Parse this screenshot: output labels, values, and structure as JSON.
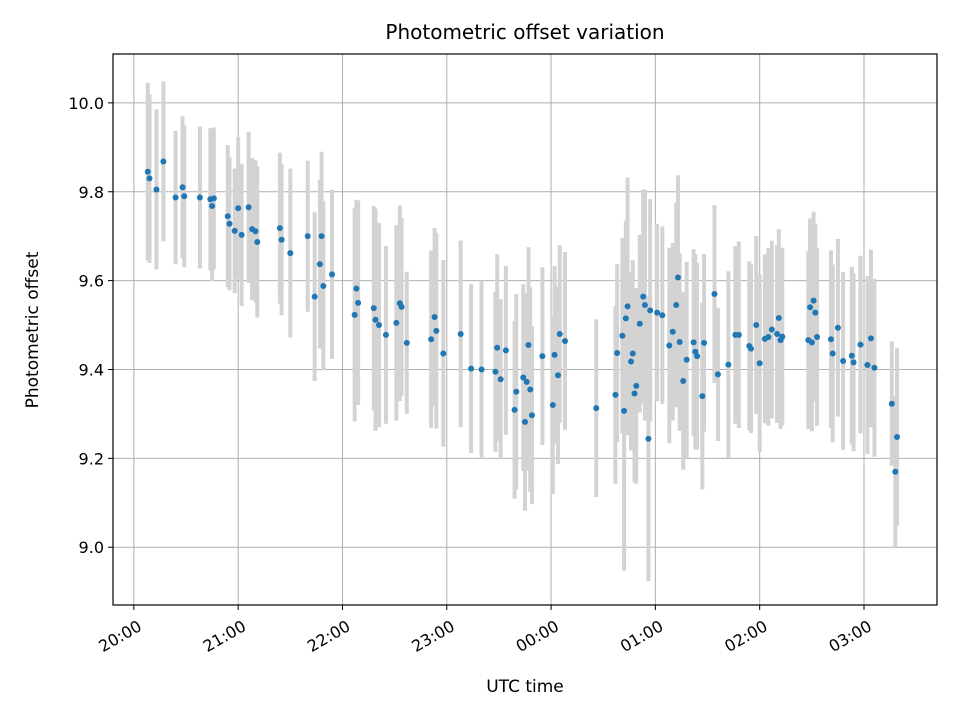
{
  "chart_data": {
    "type": "scatter",
    "title": "Photometric offset variation",
    "xlabel": "UTC time",
    "ylabel": "Photometric offset",
    "x_tick_labels": [
      "20:00",
      "21:00",
      "22:00",
      "23:00",
      "00:00",
      "01:00",
      "02:00",
      "03:00"
    ],
    "y_tick_labels": [
      "9.0",
      "9.2",
      "9.4",
      "9.6",
      "9.8",
      "10.0"
    ],
    "y_ticks": [
      9.0,
      9.2,
      9.4,
      9.6,
      9.8,
      10.0
    ],
    "xlim_hours_after_20": [
      -0.2,
      7.7
    ],
    "ylim": [
      8.87,
      10.11
    ],
    "grid": true,
    "colors": {
      "point": "#1f77b4",
      "errorbar": "#d3d3d3",
      "grid": "#b0b0b0"
    },
    "points": [
      {
        "x": "20:08",
        "y": 9.845,
        "err": 0.2
      },
      {
        "x": "20:09",
        "y": 9.83,
        "err": 0.19
      },
      {
        "x": "20:13",
        "y": 9.805,
        "err": 0.18
      },
      {
        "x": "20:17",
        "y": 9.868,
        "err": 0.18
      },
      {
        "x": "20:24",
        "y": 9.787,
        "err": 0.15
      },
      {
        "x": "20:28",
        "y": 9.81,
        "err": 0.16
      },
      {
        "x": "20:29",
        "y": 9.79,
        "err": 0.16
      },
      {
        "x": "20:38",
        "y": 9.787,
        "err": 0.16
      },
      {
        "x": "20:44",
        "y": 9.783,
        "err": 0.16
      },
      {
        "x": "20:45",
        "y": 9.768,
        "err": 0.17
      },
      {
        "x": "20:46",
        "y": 9.785,
        "err": 0.16
      },
      {
        "x": "20:54",
        "y": 9.745,
        "err": 0.16
      },
      {
        "x": "20:55",
        "y": 9.728,
        "err": 0.15
      },
      {
        "x": "20:58",
        "y": 9.712,
        "err": 0.14
      },
      {
        "x": "21:00",
        "y": 9.763,
        "err": 0.16
      },
      {
        "x": "21:02",
        "y": 9.703,
        "err": 0.16
      },
      {
        "x": "21:06",
        "y": 9.765,
        "err": 0.17
      },
      {
        "x": "21:08",
        "y": 9.716,
        "err": 0.16
      },
      {
        "x": "21:10",
        "y": 9.711,
        "err": 0.16
      },
      {
        "x": "21:11",
        "y": 9.687,
        "err": 0.17
      },
      {
        "x": "21:24",
        "y": 9.718,
        "err": 0.17
      },
      {
        "x": "21:25",
        "y": 9.692,
        "err": 0.17
      },
      {
        "x": "21:30",
        "y": 9.662,
        "err": 0.19
      },
      {
        "x": "21:40",
        "y": 9.7,
        "err": 0.17
      },
      {
        "x": "21:44",
        "y": 9.564,
        "err": 0.19
      },
      {
        "x": "21:47",
        "y": 9.637,
        "err": 0.19
      },
      {
        "x": "21:48",
        "y": 9.7,
        "err": 0.19
      },
      {
        "x": "21:49",
        "y": 9.588,
        "err": 0.19
      },
      {
        "x": "21:54",
        "y": 9.614,
        "err": 0.19
      },
      {
        "x": "22:07",
        "y": 9.523,
        "err": 0.24
      },
      {
        "x": "22:08",
        "y": 9.582,
        "err": 0.2
      },
      {
        "x": "22:09",
        "y": 9.55,
        "err": 0.23
      },
      {
        "x": "22:18",
        "y": 9.538,
        "err": 0.23
      },
      {
        "x": "22:19",
        "y": 9.512,
        "err": 0.25
      },
      {
        "x": "22:21",
        "y": 9.5,
        "err": 0.23
      },
      {
        "x": "22:25",
        "y": 9.478,
        "err": 0.2
      },
      {
        "x": "22:31",
        "y": 9.505,
        "err": 0.22
      },
      {
        "x": "22:33",
        "y": 9.549,
        "err": 0.22
      },
      {
        "x": "22:34",
        "y": 9.541,
        "err": 0.2
      },
      {
        "x": "22:37",
        "y": 9.46,
        "err": 0.16
      },
      {
        "x": "22:51",
        "y": 9.468,
        "err": 0.2
      },
      {
        "x": "22:53",
        "y": 9.518,
        "err": 0.2
      },
      {
        "x": "22:54",
        "y": 9.487,
        "err": 0.22
      },
      {
        "x": "22:58",
        "y": 9.436,
        "err": 0.21
      },
      {
        "x": "23:08",
        "y": 9.48,
        "err": 0.21
      },
      {
        "x": "23:14",
        "y": 9.402,
        "err": 0.19
      },
      {
        "x": "23:20",
        "y": 9.4,
        "err": 0.2
      },
      {
        "x": "23:28",
        "y": 9.395,
        "err": 0.18
      },
      {
        "x": "23:29",
        "y": 9.449,
        "err": 0.21
      },
      {
        "x": "23:31",
        "y": 9.378,
        "err": 0.18
      },
      {
        "x": "23:34",
        "y": 9.443,
        "err": 0.19
      },
      {
        "x": "23:39",
        "y": 9.309,
        "err": 0.2
      },
      {
        "x": "23:40",
        "y": 9.35,
        "err": 0.22
      },
      {
        "x": "23:44",
        "y": 9.382,
        "err": 0.21
      },
      {
        "x": "23:45",
        "y": 9.282,
        "err": 0.2
      },
      {
        "x": "23:46",
        "y": 9.372,
        "err": 0.2
      },
      {
        "x": "23:47",
        "y": 9.455,
        "err": 0.22
      },
      {
        "x": "23:48",
        "y": 9.355,
        "err": 0.23
      },
      {
        "x": "23:49",
        "y": 9.297,
        "err": 0.2
      },
      {
        "x": "23:55",
        "y": 9.43,
        "err": 0.2
      },
      {
        "x": "24:01",
        "y": 9.32,
        "err": 0.2
      },
      {
        "x": "24:02",
        "y": 9.433,
        "err": 0.2
      },
      {
        "x": "24:04",
        "y": 9.387,
        "err": 0.2
      },
      {
        "x": "24:05",
        "y": 9.48,
        "err": 0.2
      },
      {
        "x": "24:08",
        "y": 9.464,
        "err": 0.2
      },
      {
        "x": "24:26",
        "y": 9.313,
        "err": 0.2
      },
      {
        "x": "24:37",
        "y": 9.343,
        "err": 0.2
      },
      {
        "x": "24:38",
        "y": 9.437,
        "err": 0.2
      },
      {
        "x": "24:41",
        "y": 9.476,
        "err": 0.22
      },
      {
        "x": "24:42",
        "y": 9.307,
        "err": 0.36
      },
      {
        "x": "24:43",
        "y": 9.515,
        "err": 0.22
      },
      {
        "x": "24:44",
        "y": 9.542,
        "err": 0.29
      },
      {
        "x": "24:46",
        "y": 9.418,
        "err": 0.2
      },
      {
        "x": "24:47",
        "y": 9.436,
        "err": 0.21
      },
      {
        "x": "24:48",
        "y": 9.346,
        "err": 0.2
      },
      {
        "x": "24:49",
        "y": 9.363,
        "err": 0.22
      },
      {
        "x": "24:51",
        "y": 9.503,
        "err": 0.2
      },
      {
        "x": "24:53",
        "y": 9.564,
        "err": 0.24
      },
      {
        "x": "24:54",
        "y": 9.545,
        "err": 0.26
      },
      {
        "x": "24:56",
        "y": 9.244,
        "err": 0.32
      },
      {
        "x": "24:57",
        "y": 9.533,
        "err": 0.25
      },
      {
        "x": "25:01",
        "y": 9.528,
        "err": 0.2
      },
      {
        "x": "25:04",
        "y": 9.522,
        "err": 0.2
      },
      {
        "x": "25:08",
        "y": 9.454,
        "err": 0.22
      },
      {
        "x": "25:10",
        "y": 9.485,
        "err": 0.2
      },
      {
        "x": "25:12",
        "y": 9.545,
        "err": 0.23
      },
      {
        "x": "25:13",
        "y": 9.607,
        "err": 0.23
      },
      {
        "x": "25:14",
        "y": 9.462,
        "err": 0.2
      },
      {
        "x": "25:16",
        "y": 9.374,
        "err": 0.2
      },
      {
        "x": "25:18",
        "y": 9.422,
        "err": 0.22
      },
      {
        "x": "25:22",
        "y": 9.461,
        "err": 0.21
      },
      {
        "x": "25:23",
        "y": 9.44,
        "err": 0.22
      },
      {
        "x": "25:24",
        "y": 9.43,
        "err": 0.21
      },
      {
        "x": "25:27",
        "y": 9.34,
        "err": 0.21
      },
      {
        "x": "25:28",
        "y": 9.46,
        "err": 0.2
      },
      {
        "x": "25:34",
        "y": 9.57,
        "err": 0.2
      },
      {
        "x": "25:36",
        "y": 9.389,
        "err": 0.15
      },
      {
        "x": "25:42",
        "y": 9.411,
        "err": 0.21
      },
      {
        "x": "25:46",
        "y": 9.478,
        "err": 0.2
      },
      {
        "x": "25:48",
        "y": 9.478,
        "err": 0.21
      },
      {
        "x": "25:54",
        "y": 9.453,
        "err": 0.19
      },
      {
        "x": "25:55",
        "y": 9.447,
        "err": 0.19
      },
      {
        "x": "25:58",
        "y": 9.5,
        "err": 0.2
      },
      {
        "x": "26:00",
        "y": 9.414,
        "err": 0.2
      },
      {
        "x": "26:03",
        "y": 9.469,
        "err": 0.19
      },
      {
        "x": "26:05",
        "y": 9.473,
        "err": 0.2
      },
      {
        "x": "26:07",
        "y": 9.49,
        "err": 0.2
      },
      {
        "x": "26:10",
        "y": 9.48,
        "err": 0.2
      },
      {
        "x": "26:11",
        "y": 9.516,
        "err": 0.2
      },
      {
        "x": "26:12",
        "y": 9.466,
        "err": 0.2
      },
      {
        "x": "26:13",
        "y": 9.474,
        "err": 0.2
      },
      {
        "x": "26:28",
        "y": 9.466,
        "err": 0.2
      },
      {
        "x": "26:29",
        "y": 9.54,
        "err": 0.2
      },
      {
        "x": "26:30",
        "y": 9.461,
        "err": 0.2
      },
      {
        "x": "26:31",
        "y": 9.555,
        "err": 0.2
      },
      {
        "x": "26:32",
        "y": 9.528,
        "err": 0.2
      },
      {
        "x": "26:33",
        "y": 9.473,
        "err": 0.2
      },
      {
        "x": "26:41",
        "y": 9.468,
        "err": 0.2
      },
      {
        "x": "26:42",
        "y": 9.436,
        "err": 0.2
      },
      {
        "x": "26:45",
        "y": 9.494,
        "err": 0.2
      },
      {
        "x": "26:48",
        "y": 9.419,
        "err": 0.2
      },
      {
        "x": "26:53",
        "y": 9.431,
        "err": 0.2
      },
      {
        "x": "26:54",
        "y": 9.416,
        "err": 0.2
      },
      {
        "x": "26:58",
        "y": 9.456,
        "err": 0.2
      },
      {
        "x": "27:02",
        "y": 9.41,
        "err": 0.2
      },
      {
        "x": "27:04",
        "y": 9.47,
        "err": 0.2
      },
      {
        "x": "27:06",
        "y": 9.404,
        "err": 0.2
      },
      {
        "x": "27:16",
        "y": 9.323,
        "err": 0.14
      },
      {
        "x": "27:18",
        "y": 9.17,
        "err": 0.17
      },
      {
        "x": "27:19",
        "y": 9.248,
        "err": 0.2
      }
    ]
  }
}
